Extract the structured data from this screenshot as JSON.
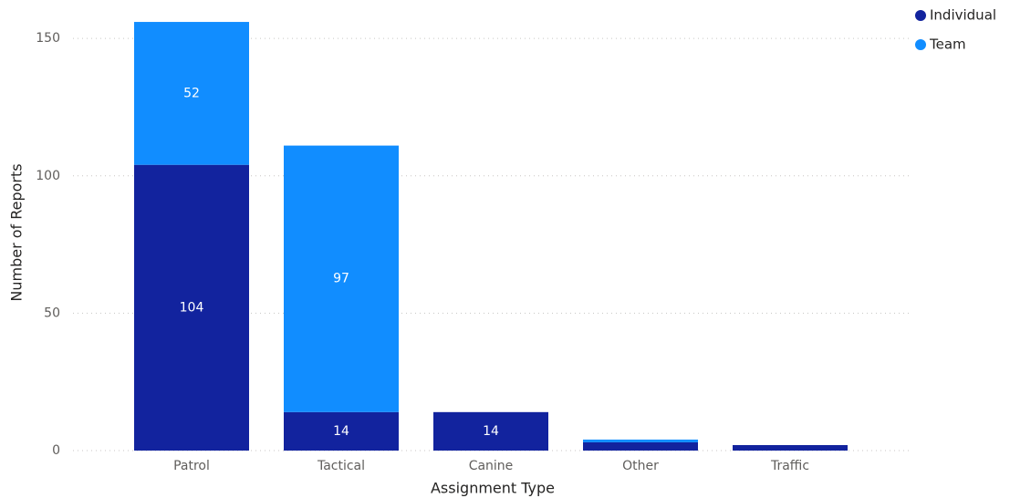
{
  "chart_data": {
    "type": "stacked_bar",
    "x_label": "Assignment Type",
    "y_label": "Number of Reports",
    "categories": [
      "Patrol",
      "Tactical",
      "Canine",
      "Other",
      "Traffic"
    ],
    "series": [
      {
        "name": "Individual",
        "color": "#12239e",
        "values": [
          104,
          14,
          14,
          3,
          2
        ]
      },
      {
        "name": "Team",
        "color": "#118dff",
        "values": [
          52,
          97,
          0,
          1,
          0
        ]
      }
    ],
    "ylim": [
      0,
      160
    ],
    "yticks": [
      0,
      50,
      100,
      150
    ],
    "grid": true,
    "legend": "top-right"
  }
}
